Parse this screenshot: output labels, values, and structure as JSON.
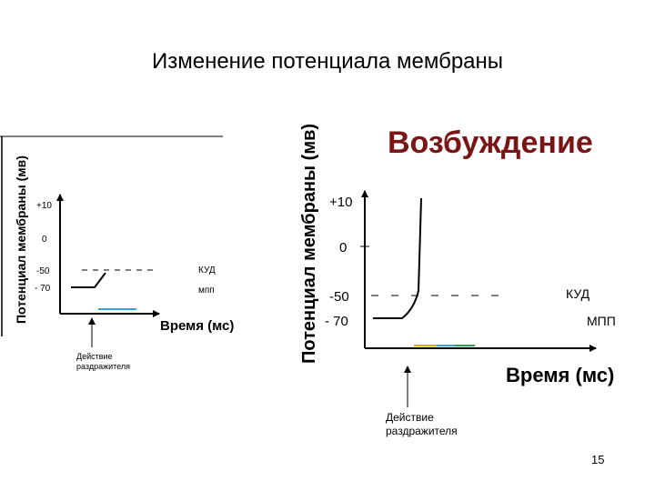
{
  "slide": {
    "title": "Изменение потенциала мембраны",
    "page_number": "15"
  },
  "colors": {
    "heading_red": "#7a1515",
    "ink": "#000000",
    "axis_highlight": [
      "#d4b000",
      "#3aa0d8",
      "#2e9a4a"
    ]
  },
  "small_chart": {
    "y_axis_label": "Потенциал мембраны (мв)",
    "ticks": [
      "+10",
      "0",
      "-50",
      "- 70"
    ],
    "threshold_label": "КУД",
    "resting_label": "мпп",
    "x_axis_label": "Время (мс)",
    "stimulus_label_line1": "Действие",
    "stimulus_label_line2": "раздражителя"
  },
  "large_chart": {
    "heading": "Возбуждение",
    "y_axis_label": "Потенциал мембраны (мв)",
    "ticks": [
      "+10",
      "0",
      "-50",
      "- 70"
    ],
    "threshold_label": "КУД",
    "resting_label": "МПП",
    "x_axis_label": "Время (мс)",
    "stimulus_label_line1": "Действие",
    "stimulus_label_line2": "раздражителя"
  }
}
